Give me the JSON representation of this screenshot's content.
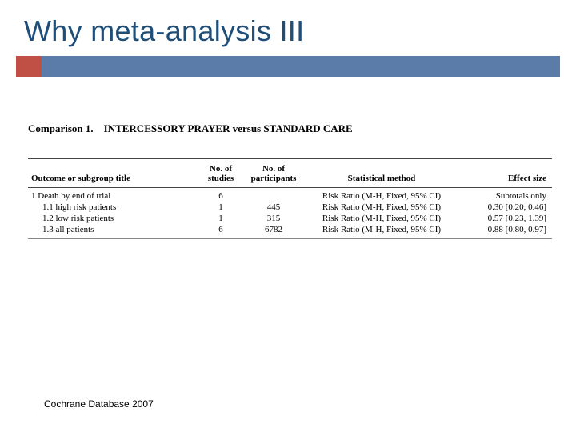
{
  "title": "Why meta-analysis III",
  "accent": {
    "left_color": "#c05046",
    "right_color": "#5b7ba8"
  },
  "comparison": {
    "label": "Comparison 1.",
    "text": "INTERCESSORY PRAYER versus STANDARD CARE"
  },
  "table": {
    "headers": {
      "outcome": "Outcome or subgroup title",
      "studies": "No. of studies",
      "participants": "No. of participants",
      "method": "Statistical method",
      "effect": "Effect size"
    },
    "rows": [
      {
        "outcome": "1 Death by end of trial",
        "studies": "6",
        "participants": "",
        "method": "Risk Ratio (M-H, Fixed, 95% CI)",
        "effect": "Subtotals only",
        "indent": false
      },
      {
        "outcome": "1.1 high risk patients",
        "studies": "1",
        "participants": "445",
        "method": "Risk Ratio (M-H, Fixed, 95% CI)",
        "effect": "0.30 [0.20, 0.46]",
        "indent": true
      },
      {
        "outcome": "1.2 low risk patients",
        "studies": "1",
        "participants": "315",
        "method": "Risk Ratio (M-H, Fixed, 95% CI)",
        "effect": "0.57 [0.23, 1.39]",
        "indent": true
      },
      {
        "outcome": "1.3 all patients",
        "studies": "6",
        "participants": "6782",
        "method": "Risk Ratio (M-H, Fixed, 95% CI)",
        "effect": "0.88 [0.80, 0.97]",
        "indent": true
      }
    ]
  },
  "footer": "Cochrane Database 2007"
}
